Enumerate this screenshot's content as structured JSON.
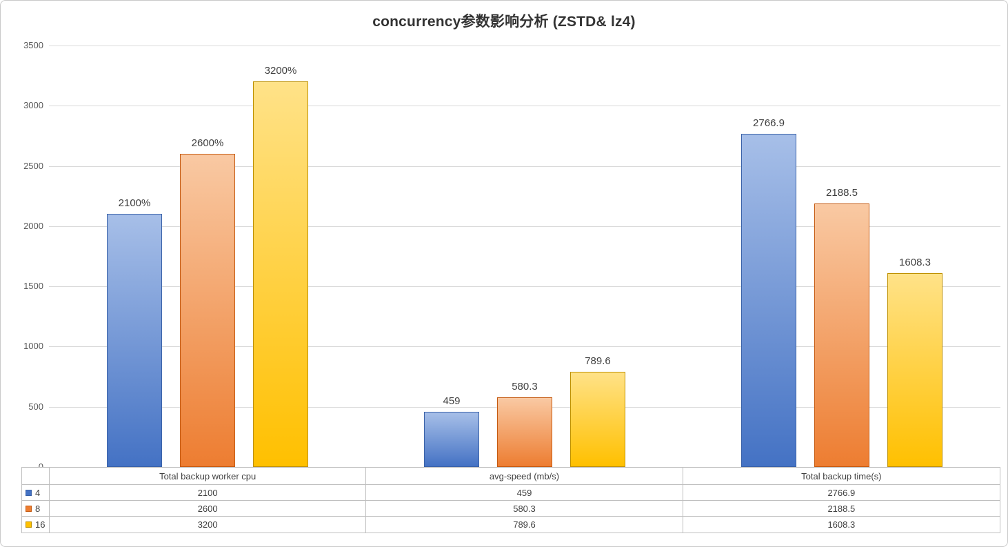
{
  "chart_data": {
    "type": "bar",
    "title": "concurrency参数影响分析 (ZSTD& lz4)",
    "categories": [
      "Total backup worker cpu",
      "avg-speed (mb/s)",
      "Total backup time(s)"
    ],
    "series": [
      {
        "name": "4",
        "values": [
          2100,
          459,
          2766.9
        ],
        "labels": [
          "2100%",
          "459",
          "2766.9"
        ],
        "table_values": [
          "2100",
          "459",
          "2766.9"
        ],
        "color": "#4472C4",
        "fill_top": "#A7BFE8",
        "fill_bottom": "#4472C4",
        "border": "#3A62A8"
      },
      {
        "name": "8",
        "values": [
          2600,
          580.3,
          2188.5
        ],
        "labels": [
          "2600%",
          "580.3",
          "2188.5"
        ],
        "table_values": [
          "2600",
          "580.3",
          "2188.5"
        ],
        "color": "#ED7D31",
        "fill_top": "#F9C9A3",
        "fill_bottom": "#ED7D31",
        "border": "#C55A11"
      },
      {
        "name": "16",
        "values": [
          3200,
          789.6,
          1608.3
        ],
        "labels": [
          "3200%",
          "789.6",
          "1608.3"
        ],
        "table_values": [
          "3200",
          "789.6",
          "1608.3"
        ],
        "color": "#FFC000",
        "fill_top": "#FFE288",
        "fill_bottom": "#FFC000",
        "border": "#BF9000"
      }
    ],
    "y_axis": {
      "min": 0,
      "max": 3500,
      "step": 500,
      "ticks": [
        "0",
        "500",
        "1000",
        "1500",
        "2000",
        "2500",
        "3000",
        "3500"
      ]
    },
    "grid": true,
    "legend_position": "table-left"
  }
}
